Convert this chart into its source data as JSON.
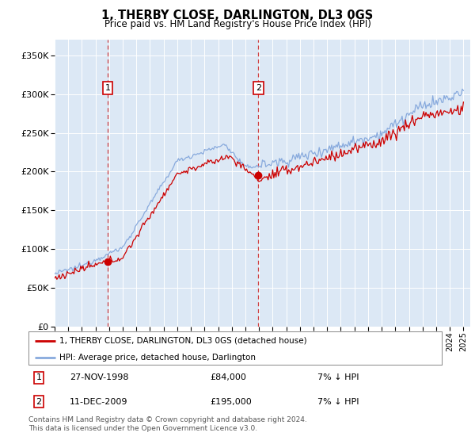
{
  "title": "1, THERBY CLOSE, DARLINGTON, DL3 0GS",
  "subtitle": "Price paid vs. HM Land Registry's House Price Index (HPI)",
  "ylim": [
    0,
    370000
  ],
  "yticks": [
    0,
    50000,
    100000,
    150000,
    200000,
    250000,
    300000,
    350000
  ],
  "sale1_date": "27-NOV-1998",
  "sale1_price": 84000,
  "sale1_year": 1998.9,
  "sale2_date": "11-DEC-2009",
  "sale2_price": 195000,
  "sale2_year": 2009.95,
  "legend_line1": "1, THERBY CLOSE, DARLINGTON, DL3 0GS (detached house)",
  "legend_line2": "HPI: Average price, detached house, Darlington",
  "footer": "Contains HM Land Registry data © Crown copyright and database right 2024.\nThis data is licensed under the Open Government Licence v3.0.",
  "sale1_hpi_diff": "7% ↓ HPI",
  "sale2_hpi_diff": "7% ↓ HPI",
  "line_color_red": "#cc0000",
  "line_color_blue": "#88aadd",
  "bg_color": "#dce8f5",
  "grid_color": "#ffffff",
  "xlim_start": 1995,
  "xlim_end": 2025.5
}
